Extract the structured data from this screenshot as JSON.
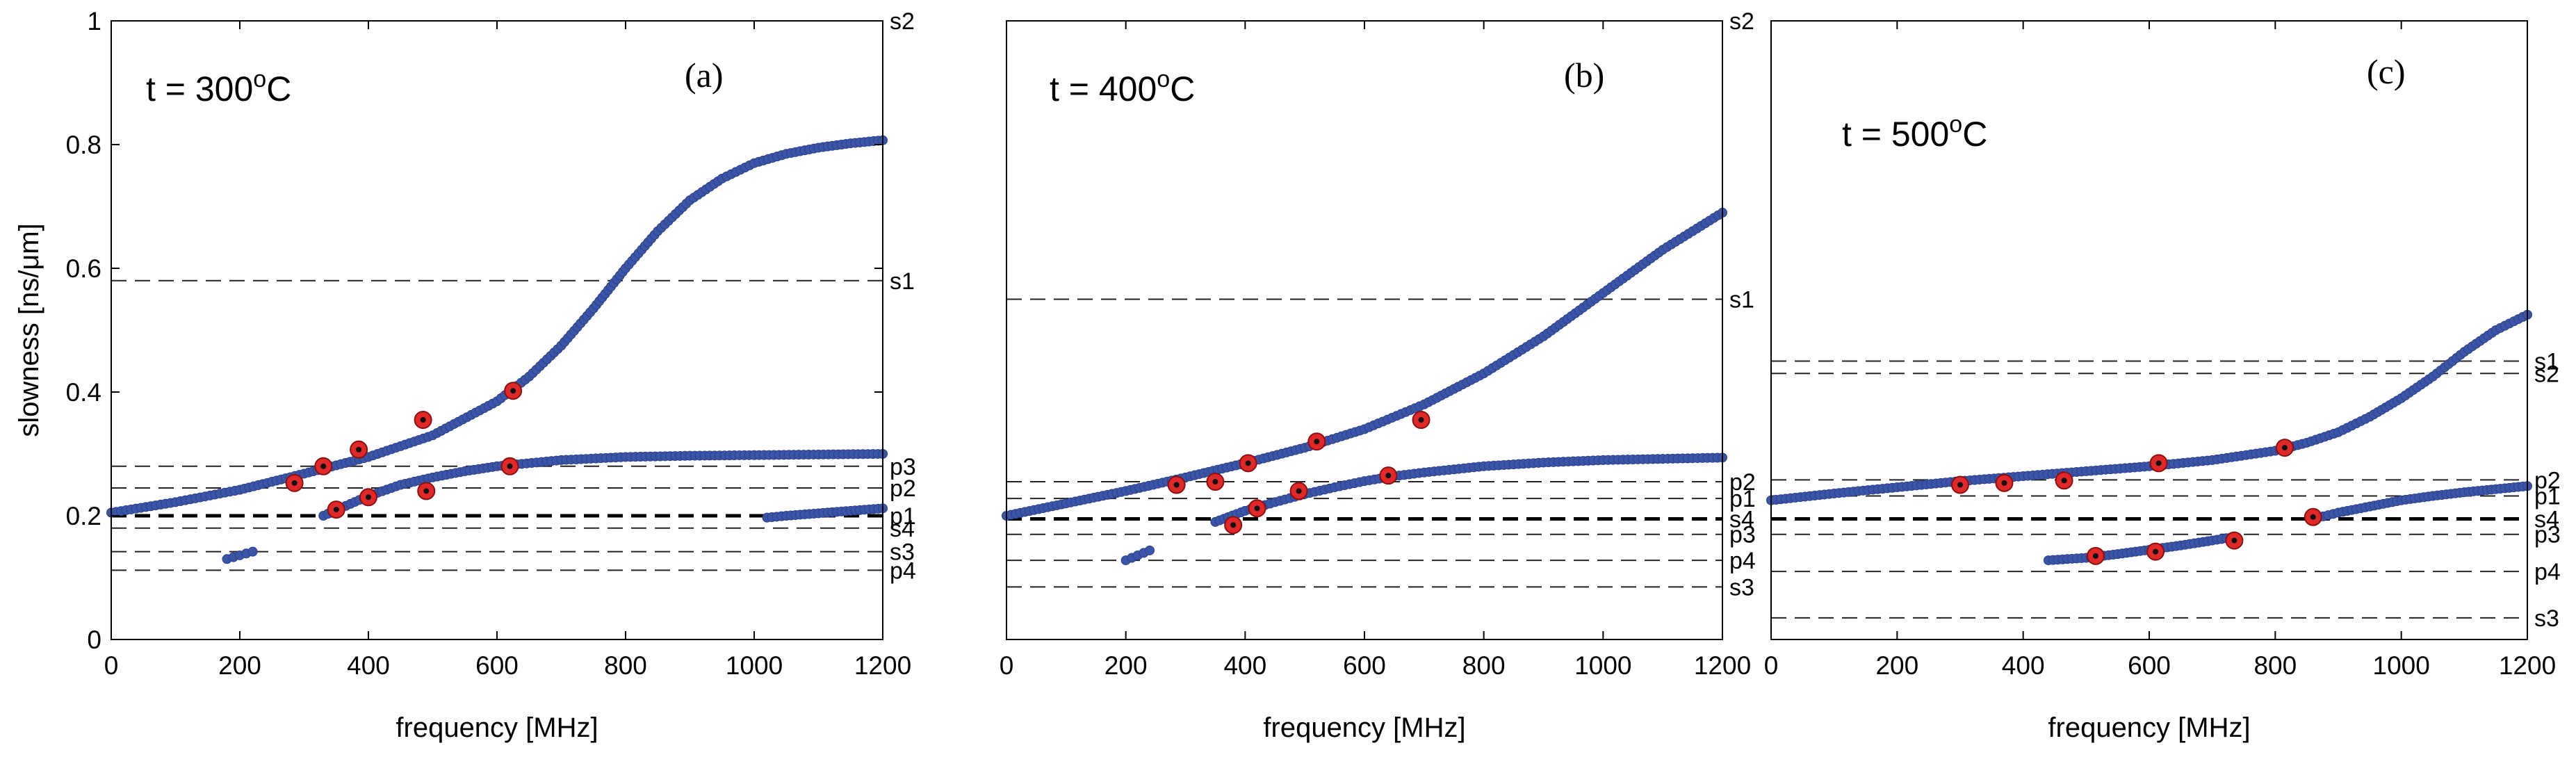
{
  "chart_data": [
    {
      "type": "scatter",
      "panel_tag": "(a)",
      "annotation": "t = 300",
      "annotation_sup": "o",
      "annotation_unit": "C",
      "xlabel": "frequency [MHz]",
      "ylabel": "slowness  [ns/μm]",
      "xlim": [
        0,
        1200
      ],
      "ylim": [
        0,
        1
      ],
      "xticks": [
        "0",
        "200",
        "400",
        "600",
        "800",
        "1000",
        "1200"
      ],
      "yticks": [
        "0",
        "0.2",
        "0.4",
        "0.6",
        "0.8",
        "1"
      ],
      "grid": false,
      "reference_lines": [
        {
          "label": "s2",
          "y": 1.0,
          "bold": false
        },
        {
          "label": "s1",
          "y": 0.58,
          "bold": false
        },
        {
          "label": "p3",
          "y": 0.28,
          "bold": false
        },
        {
          "label": "p2",
          "y": 0.245,
          "bold": false
        },
        {
          "label": "p1",
          "y": 0.2,
          "bold": true
        },
        {
          "label": "s4",
          "y": 0.18,
          "bold": false
        },
        {
          "label": "s3",
          "y": 0.142,
          "bold": false
        },
        {
          "label": "p4",
          "y": 0.112,
          "bold": false
        }
      ],
      "series": [
        {
          "kind": "curve",
          "x": [
            0,
            100,
            200,
            300,
            400,
            500,
            600,
            650,
            700,
            750,
            800,
            850,
            900,
            950,
            1000,
            1050,
            1100,
            1150,
            1200
          ],
          "y": [
            0.205,
            0.222,
            0.242,
            0.268,
            0.295,
            0.33,
            0.385,
            0.425,
            0.475,
            0.535,
            0.6,
            0.66,
            0.71,
            0.745,
            0.77,
            0.785,
            0.795,
            0.802,
            0.807
          ]
        },
        {
          "kind": "curve",
          "x": [
            330,
            400,
            450,
            500,
            550,
            600,
            700,
            800,
            900,
            1000,
            1100,
            1200
          ],
          "y": [
            0.2,
            0.232,
            0.25,
            0.262,
            0.272,
            0.28,
            0.29,
            0.295,
            0.297,
            0.298,
            0.299,
            0.3
          ]
        },
        {
          "kind": "curve",
          "x": [
            1020,
            1050,
            1100,
            1150,
            1200
          ],
          "y": [
            0.197,
            0.2,
            0.204,
            0.208,
            0.212
          ]
        },
        {
          "kind": "curve",
          "x": [
            180,
            190,
            200,
            210,
            220
          ],
          "y": [
            0.13,
            0.133,
            0.136,
            0.139,
            0.142
          ]
        },
        {
          "kind": "measured",
          "x": [
            285,
            330,
            350,
            385,
            400,
            485,
            490,
            620,
            625
          ],
          "y": [
            0.253,
            0.28,
            0.21,
            0.307,
            0.23,
            0.355,
            0.24,
            0.28,
            0.402
          ]
        }
      ]
    },
    {
      "type": "scatter",
      "panel_tag": "(b)",
      "annotation": "t = 400",
      "annotation_sup": "o",
      "annotation_unit": "C",
      "xlabel": "frequency [MHz]",
      "ylabel": "",
      "xlim": [
        0,
        1200
      ],
      "ylim": [
        0,
        1
      ],
      "xticks": [
        "0",
        "200",
        "400",
        "600",
        "800",
        "1000",
        "1200"
      ],
      "yticks": [],
      "grid": false,
      "reference_lines": [
        {
          "label": "s2",
          "y": 1.0,
          "bold": false
        },
        {
          "label": "s1",
          "y": 0.55,
          "bold": false
        },
        {
          "label": "p2",
          "y": 0.255,
          "bold": false
        },
        {
          "label": "p1",
          "y": 0.228,
          "bold": false
        },
        {
          "label": "s4",
          "y": 0.195,
          "bold": true
        },
        {
          "label": "p3",
          "y": 0.17,
          "bold": false
        },
        {
          "label": "p4",
          "y": 0.128,
          "bold": false
        },
        {
          "label": "s3",
          "y": 0.085,
          "bold": false
        }
      ],
      "series": [
        {
          "kind": "curve",
          "x": [
            0,
            100,
            200,
            300,
            400,
            500,
            600,
            700,
            800,
            900,
            1000,
            1100,
            1200
          ],
          "y": [
            0.2,
            0.22,
            0.24,
            0.262,
            0.285,
            0.31,
            0.34,
            0.38,
            0.43,
            0.49,
            0.56,
            0.63,
            0.69
          ]
        },
        {
          "kind": "curve",
          "x": [
            350,
            400,
            450,
            500,
            550,
            600,
            650,
            700,
            800,
            900,
            1000,
            1100,
            1200
          ],
          "y": [
            0.19,
            0.208,
            0.222,
            0.235,
            0.246,
            0.256,
            0.264,
            0.27,
            0.28,
            0.286,
            0.29,
            0.292,
            0.294
          ]
        },
        {
          "kind": "curve",
          "x": [
            200,
            210,
            220,
            230,
            240
          ],
          "y": [
            0.128,
            0.132,
            0.136,
            0.14,
            0.144
          ]
        },
        {
          "kind": "measured",
          "x": [
            285,
            350,
            380,
            405,
            420,
            490,
            520,
            640,
            695
          ],
          "y": [
            0.25,
            0.255,
            0.185,
            0.285,
            0.212,
            0.24,
            0.32,
            0.265,
            0.355
          ]
        }
      ]
    },
    {
      "type": "scatter",
      "panel_tag": "(c)",
      "annotation": "t = 500",
      "annotation_sup": "o",
      "annotation_unit": "C",
      "xlabel": "frequency [MHz]",
      "ylabel": "",
      "xlim": [
        0,
        1200
      ],
      "ylim": [
        0,
        1
      ],
      "xticks": [
        "0",
        "200",
        "400",
        "600",
        "800",
        "1000",
        "1200"
      ],
      "yticks": [],
      "grid": false,
      "reference_lines": [
        {
          "label": "s1",
          "y": 0.45,
          "bold": false
        },
        {
          "label": "s2",
          "y": 0.43,
          "bold": false
        },
        {
          "label": "p2",
          "y": 0.258,
          "bold": false
        },
        {
          "label": "p1",
          "y": 0.232,
          "bold": false
        },
        {
          "label": "s4",
          "y": 0.195,
          "bold": true
        },
        {
          "label": "p3",
          "y": 0.17,
          "bold": false
        },
        {
          "label": "p4",
          "y": 0.11,
          "bold": false
        },
        {
          "label": "s3",
          "y": 0.035,
          "bold": false
        }
      ],
      "series": [
        {
          "kind": "curve",
          "x": [
            0,
            100,
            200,
            300,
            400,
            500,
            600,
            700,
            800,
            850,
            900,
            950,
            1000,
            1050,
            1100,
            1150,
            1200
          ],
          "y": [
            0.225,
            0.236,
            0.246,
            0.256,
            0.264,
            0.272,
            0.28,
            0.29,
            0.305,
            0.318,
            0.335,
            0.36,
            0.39,
            0.425,
            0.465,
            0.5,
            0.525
          ]
        },
        {
          "kind": "curve",
          "x": [
            860,
            900,
            950,
            1000,
            1050,
            1100,
            1150,
            1200
          ],
          "y": [
            0.195,
            0.205,
            0.215,
            0.225,
            0.232,
            0.238,
            0.243,
            0.248
          ]
        },
        {
          "kind": "curve",
          "x": [
            440,
            500,
            550,
            600,
            650,
            700,
            730
          ],
          "y": [
            0.128,
            0.132,
            0.138,
            0.145,
            0.152,
            0.16,
            0.165
          ]
        },
        {
          "kind": "measured",
          "x": [
            300,
            370,
            465,
            515,
            610,
            615,
            735,
            815,
            860
          ],
          "y": [
            0.25,
            0.253,
            0.257,
            0.135,
            0.142,
            0.285,
            0.16,
            0.31,
            0.198
          ]
        }
      ]
    }
  ]
}
